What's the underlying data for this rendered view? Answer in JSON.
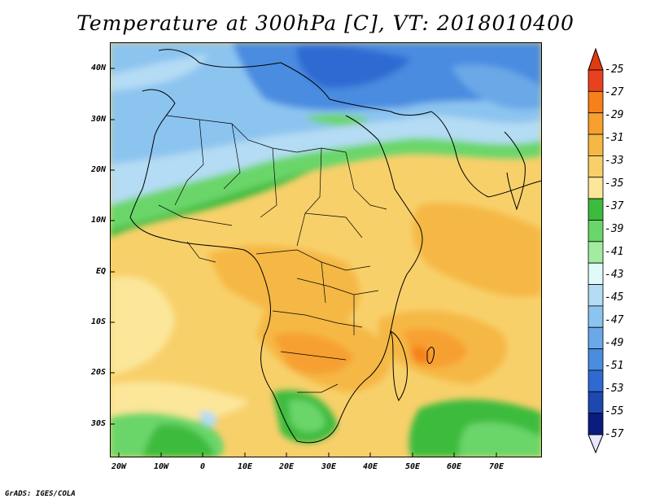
{
  "title": "Temperature at 300hPa [C], VT: 2018010400",
  "credit": "GrADS: IGES/COLA",
  "y_ticks": [
    "40N",
    "30N",
    "20N",
    "10N",
    "EQ",
    "10S",
    "20S",
    "30S"
  ],
  "x_ticks": [
    "20W",
    "10W",
    "0",
    "10E",
    "20E",
    "30E",
    "40E",
    "50E",
    "60E",
    "70E"
  ],
  "colorbar": {
    "labels": [
      "-25",
      "-27",
      "-29",
      "-31",
      "-33",
      "-35",
      "-37",
      "-39",
      "-41",
      "-43",
      "-45",
      "-47",
      "-49",
      "-51",
      "-53",
      "-55",
      "-57"
    ],
    "colors": [
      "#e8411e",
      "#f7801a",
      "#f7a030",
      "#f5b844",
      "#f8d06a",
      "#fbe69a",
      "#3cbb3c",
      "#6ad66a",
      "#a2eca2",
      "#e0fafa",
      "#b4dcf4",
      "#8cc4f0",
      "#6aa8e8",
      "#4a8ce0",
      "#2f6ad2",
      "#1c48b0",
      "#0a1c80"
    ],
    "top_arrow_color": "#e03a10",
    "bottom_arrow_color": "#e8e8ff"
  }
}
